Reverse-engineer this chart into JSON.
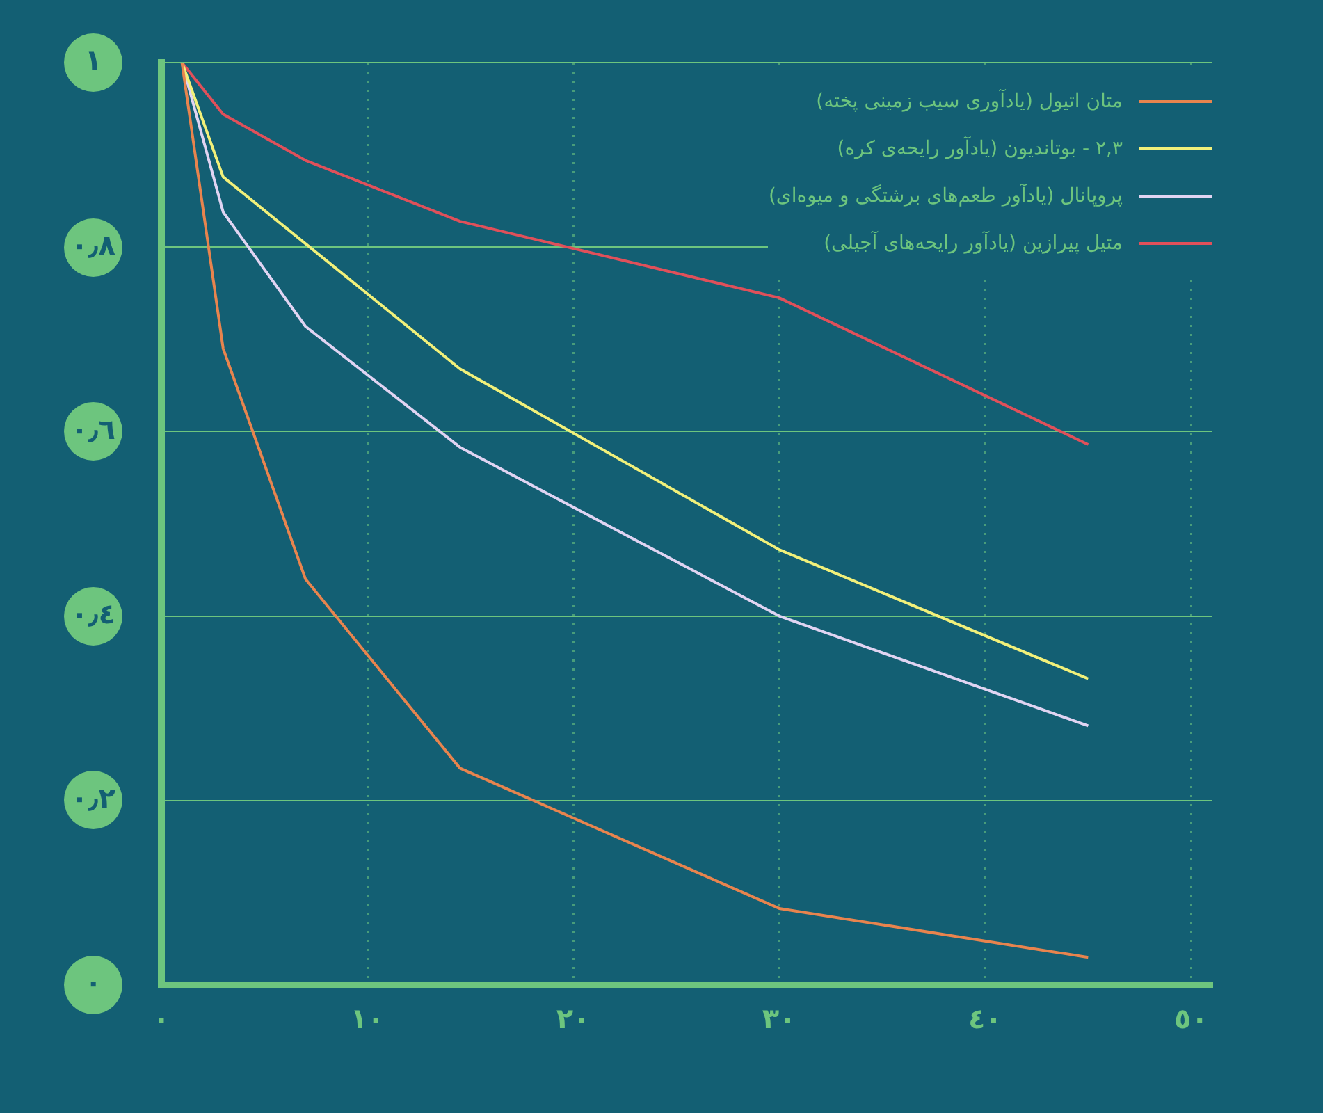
{
  "chart_data": {
    "type": "line",
    "x": [
      1,
      3,
      7,
      14.5,
      30,
      45
    ],
    "series": [
      {
        "name": "متان اتیول (یادآوری سیب زمینی پخته)",
        "color": "#e8844e",
        "values": [
          1,
          0.69,
          0.44,
          0.235,
          0.083,
          0.03
        ]
      },
      {
        "name": "۲,۳ - بوتاندیون  (یادآور رایحه‌ی کره)",
        "color": "#f1f07a",
        "x": [
          1,
          3,
          14.5,
          30,
          45
        ],
        "values": [
          1,
          0.876,
          0.668,
          0.472,
          0.332
        ]
      },
      {
        "name": "پروپانال (یادآور طعم‌های برشتگی و میوه‌ای)",
        "color": "#e0d4f2",
        "values": [
          1,
          0.838,
          0.714,
          0.583,
          0.4,
          0.281
        ]
      },
      {
        "name": "متیل پیرازین (یادآور رایحه‌های آجیلی)",
        "color": "#e0505a",
        "values": [
          1,
          0.944,
          0.894,
          0.828,
          0.745,
          0.586
        ]
      }
    ],
    "xlim": [
      0,
      51
    ],
    "xticks": [
      {
        "value": 0,
        "label": "٠"
      },
      {
        "value": 10,
        "label": "١٠"
      },
      {
        "value": 20,
        "label": "٢٠"
      },
      {
        "value": 30,
        "label": "٣٠"
      },
      {
        "value": 40,
        "label": "٤٠"
      },
      {
        "value": 50,
        "label": "٥٠"
      }
    ],
    "ylim": [
      0,
      1
    ],
    "yticks": [
      {
        "value": 0,
        "label": "٠"
      },
      {
        "value": 0.2,
        "label": "٠٫٢"
      },
      {
        "value": 0.4,
        "label": "٠٫٤"
      },
      {
        "value": 0.6,
        "label": "٠٫٦"
      },
      {
        "value": 0.8,
        "label": "٠٫٨"
      },
      {
        "value": 1,
        "label": "١"
      }
    ],
    "grid": true,
    "legend": "top right",
    "marker": "none",
    "line_style": "solid"
  }
}
